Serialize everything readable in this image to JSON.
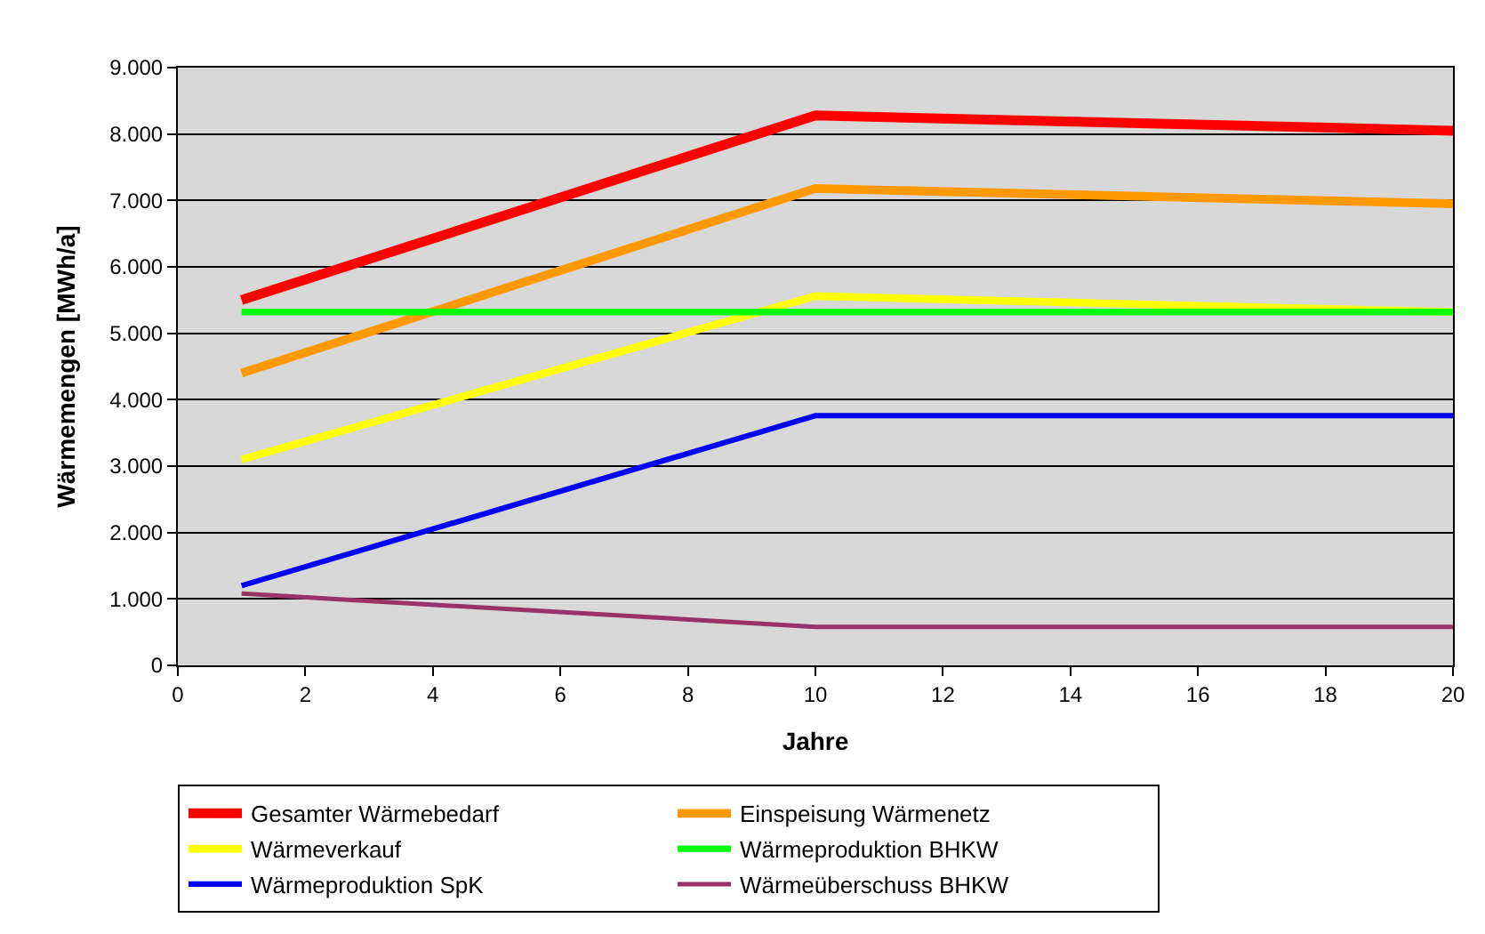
{
  "chart_data": {
    "type": "line",
    "xlabel": "Jahre",
    "ylabel": "Wärmemengen [MWh/a]",
    "x": [
      1,
      10,
      20
    ],
    "series": [
      {
        "name": "Gesamter Wärmebedarf",
        "color": "#ff0000",
        "values": [
          5500,
          8280,
          8050
        ]
      },
      {
        "name": "Einspeisung Wärmenetz",
        "color": "#ff9900",
        "values": [
          4400,
          7180,
          6950
        ]
      },
      {
        "name": "Wärmeverkauf",
        "color": "#ffff00",
        "values": [
          3100,
          5560,
          5320
        ]
      },
      {
        "name": "Wärmeproduktion BHKW",
        "color": "#00ff00",
        "values": [
          5320,
          5320,
          5320
        ]
      },
      {
        "name": "Wärmeproduktion SpK",
        "color": "#0000ff",
        "values": [
          1200,
          3760,
          3760
        ]
      },
      {
        "name": "Wärmeüberschuss BHKW",
        "color": "#993366",
        "values": [
          1080,
          580,
          580
        ]
      }
    ],
    "xlim": [
      0,
      20
    ],
    "xticks": [
      0,
      2,
      4,
      6,
      8,
      10,
      12,
      14,
      16,
      18,
      20
    ],
    "ylim": [
      0,
      9000
    ],
    "yticks": [
      {
        "value": 0,
        "label": "0"
      },
      {
        "value": 1000,
        "label": "1.000"
      },
      {
        "value": 2000,
        "label": "2.000"
      },
      {
        "value": 3000,
        "label": "3.000"
      },
      {
        "value": 4000,
        "label": "4.000"
      },
      {
        "value": 5000,
        "label": "5.000"
      },
      {
        "value": 6000,
        "label": "6.000"
      },
      {
        "value": 7000,
        "label": "7.000"
      },
      {
        "value": 8000,
        "label": "8.000"
      },
      {
        "value": 9000,
        "label": "9.000"
      }
    ],
    "grid": "y",
    "legend": "bottom",
    "marker": "none",
    "line_style": "solid"
  }
}
